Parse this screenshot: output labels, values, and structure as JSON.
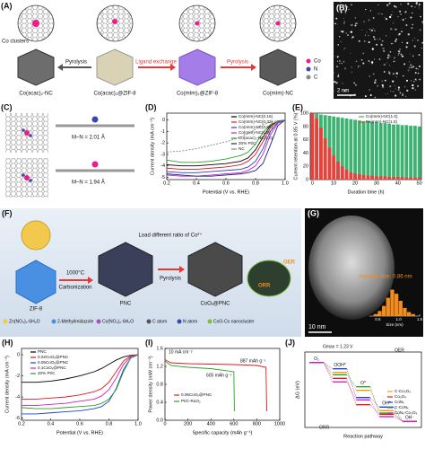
{
  "panel_labels": [
    "(A)",
    "(B)",
    "(C)",
    "(D)",
    "(E)",
    "(F)",
    "(G)",
    "(H)",
    "(I)",
    "(J)"
  ],
  "panel_a": {
    "note": "Co clusters",
    "steps": [
      "Pyrolysis",
      "Ligand exchange",
      "Pyrolysis"
    ],
    "materials": [
      "Co(acac)₂-NC",
      "Co(acac)₂@ZIF-8",
      "Co(mIm)₂@ZIF-8",
      "Co(mIm)-NC"
    ],
    "legend": [
      "Co",
      "N",
      "C"
    ]
  },
  "panel_b": {
    "scale_bar": "2 nm"
  },
  "panel_c": {
    "bonds": [
      "M–N = 2.01 Å",
      "M–N = 1.94 Å"
    ]
  },
  "panel_f": {
    "steps": [
      "1000°C",
      "Carbonization",
      "Load different ratio of Co²⁺",
      "Pyrolysis"
    ],
    "materials": [
      "ZIF-8",
      "PNC",
      "CoOₓ@PNC"
    ],
    "reactions": [
      "OER",
      "ORR"
    ],
    "legend": [
      "Zn(NO₃)₂·6H₂O",
      "2-Methylimidazole",
      "Co(NO₃)₂·6H₂O",
      "C atom",
      "N atom",
      "CoO-Co nanocluster"
    ]
  },
  "panel_g": {
    "average": "Average size: 0.86 nm",
    "scale_bar": "10 nm"
  },
  "chart_data": [
    {
      "type": "line",
      "x_label": "Potential (V vs. RHE)",
      "y_label": "Current density (mA cm⁻²)",
      "xlim": [
        0.2,
        1.0
      ],
      "xticks": [
        0.2,
        0.4,
        0.6,
        0.8,
        {
          "value": 1,
          "label": "1.0"
        }
      ],
      "ylim": [
        -5.2,
        0.6
      ],
      "yticks": [
        0,
        -1,
        -2,
        -3,
        -4,
        -5
      ],
      "x": [
        0.2,
        0.3,
        0.4,
        0.5,
        0.6,
        0.7,
        0.75,
        0.8,
        0.85,
        0.9,
        0.95,
        1.0
      ],
      "series": [
        {
          "name": "Co(mIm)-NC(0.16)",
          "color": "#000000",
          "values": [
            -3.9,
            -4.0,
            -4.0,
            -3.9,
            -3.8,
            -3.6,
            -3.3,
            -2.6,
            -1.5,
            -0.5,
            -0.1,
            0
          ]
        },
        {
          "name": "Co(mIm)-NC(0.33)",
          "color": "#e41a1c",
          "values": [
            -4.2,
            -4.3,
            -4.3,
            -4.2,
            -4.1,
            -3.9,
            -3.6,
            -3.0,
            -1.9,
            -0.7,
            -0.1,
            0
          ]
        },
        {
          "name": "Co(mIm)-NC(0.67)",
          "color": "#1f3fd0",
          "values": [
            -4.5,
            -4.6,
            -4.6,
            -4.5,
            -4.4,
            -4.3,
            -4.1,
            -3.6,
            -2.5,
            -1.0,
            -0.2,
            0
          ]
        },
        {
          "name": "Co(mIm)-NC(1.0)",
          "color": "#d01fc8",
          "values": [
            -4.8,
            -4.9,
            -4.9,
            -4.8,
            -4.7,
            -4.6,
            -4.4,
            -4.0,
            -3.0,
            -1.3,
            -0.3,
            0
          ]
        },
        {
          "name": "Co(acac)₂-NC(1.0)",
          "color": "#2ca02c",
          "values": [
            -3.5,
            -3.7,
            -3.7,
            -3.6,
            -3.4,
            -3.1,
            -2.8,
            -2.1,
            -1.1,
            -0.4,
            -0.1,
            0
          ]
        },
        {
          "name": "20% Pt/C",
          "color": "#1a237e",
          "values": [
            -4.7,
            -4.8,
            -4.9,
            -4.9,
            -4.8,
            -4.7,
            -4.6,
            -4.4,
            -3.8,
            -2.2,
            -0.5,
            0
          ]
        },
        {
          "name": "NC",
          "color": "#888888",
          "dash": true,
          "values": [
            -2.8,
            -2.7,
            -2.5,
            -2.2,
            -1.9,
            -1.5,
            -1.2,
            -0.8,
            -0.4,
            -0.2,
            -0.05,
            0
          ]
        }
      ]
    },
    {
      "type": "bar",
      "x_label": "Duration time (h)",
      "y_label": "Current retention at 0.85 V (%)",
      "xlim": [
        -1,
        51
      ],
      "xticks": [
        0,
        10,
        20,
        30,
        40,
        50
      ],
      "ylim": [
        0,
        100
      ],
      "yticks": [
        0,
        20,
        40,
        60,
        80,
        100
      ],
      "x": [
        0,
        2,
        4,
        6,
        8,
        10,
        12,
        14,
        16,
        18,
        20,
        22,
        24,
        26,
        28,
        30,
        32,
        34,
        36,
        38,
        40,
        42,
        44,
        46,
        48,
        50
      ],
      "series": [
        {
          "name": "Co(mIm)-NC(1.0)",
          "color": "#3cb371",
          "values": [
            100,
            99,
            98,
            97,
            96,
            95,
            94,
            93,
            92,
            91,
            90,
            89,
            88,
            88,
            87,
            86,
            85,
            85,
            84,
            83,
            83,
            82,
            82,
            81,
            81,
            80
          ]
        },
        {
          "name": "Fe(mIm)-NC(1.0)",
          "color": "#e8413c",
          "values": [
            100,
            92,
            78,
            62,
            48,
            36,
            27,
            20,
            15,
            11,
            9,
            8,
            7,
            6,
            6,
            5,
            5,
            5,
            4,
            4,
            4,
            4,
            3,
            3,
            3,
            3
          ]
        }
      ]
    },
    {
      "type": "histogram",
      "x_label": "Size (nm)",
      "xlim": [
        0.3,
        1.5
      ],
      "xticks": [
        0.5,
        {
          "value": 1,
          "label": "1.0"
        },
        1.5
      ],
      "ylim": [
        0,
        30
      ],
      "color": "#f28c1e",
      "bins": [
        0.4,
        0.5,
        0.6,
        0.7,
        0.8,
        0.9,
        1.0,
        1.1,
        1.2,
        1.3,
        1.4
      ],
      "values": [
        2,
        5,
        10,
        18,
        26,
        22,
        15,
        8,
        4,
        2
      ]
    },
    {
      "type": "line",
      "x_label": "Potential (V vs. RHE)",
      "y_label": "Current density (mA cm⁻²)",
      "xlim": [
        0.2,
        1.0
      ],
      "xticks": [
        0.2,
        0.4,
        0.6,
        0.8,
        {
          "value": 1,
          "label": "1.0"
        }
      ],
      "ylim": [
        -6.2,
        0.6
      ],
      "yticks": [
        0,
        -2,
        -4,
        -6
      ],
      "x": [
        0.2,
        0.3,
        0.4,
        0.5,
        0.6,
        0.7,
        0.75,
        0.8,
        0.85,
        0.9,
        0.95,
        1.0
      ],
      "series": [
        {
          "name": "PNC",
          "color": "#000000",
          "values": [
            -2.6,
            -2.6,
            -2.5,
            -2.3,
            -2.0,
            -1.6,
            -1.3,
            -0.9,
            -0.5,
            -0.2,
            -0.05,
            0
          ]
        },
        {
          "name": "0.02CoOₓ@PNC",
          "color": "#e41a1c",
          "values": [
            -4.2,
            -4.2,
            -4.1,
            -4.0,
            -3.8,
            -3.5,
            -3.2,
            -2.6,
            -1.6,
            -0.6,
            -0.1,
            0
          ]
        },
        {
          "name": "0.05CoOₓ@PNC",
          "color": "#1f3fd0",
          "values": [
            -5.6,
            -5.6,
            -5.5,
            -5.4,
            -5.3,
            -5.1,
            -4.9,
            -4.4,
            -3.2,
            -1.4,
            -0.3,
            0
          ]
        },
        {
          "name": "0.1CoOₓ@PNC",
          "color": "#d01fc8",
          "values": [
            -4.8,
            -4.8,
            -4.7,
            -4.6,
            -4.4,
            -4.2,
            -3.9,
            -3.3,
            -2.2,
            -0.9,
            -0.2,
            0
          ]
        },
        {
          "name": "20% Pt/C",
          "color": "#2ca02c",
          "values": [
            -5.0,
            -5.1,
            -5.1,
            -5.0,
            -4.9,
            -4.8,
            -4.6,
            -4.2,
            -3.3,
            -1.6,
            -0.3,
            0
          ]
        }
      ]
    },
    {
      "type": "line",
      "x_label": "Specific capacity (mAh g⁻¹)",
      "y_label": "Power density (mW cm⁻²)",
      "xlim": [
        0,
        1000
      ],
      "xticks": [
        0,
        200,
        400,
        600,
        800,
        1000
      ],
      "ylim": [
        0,
        1.6
      ],
      "yticks": [
        {
          "value": 0,
          "label": "0.0"
        },
        0.4,
        0.8,
        1.2,
        1.6
      ],
      "x": [
        0,
        50,
        200,
        400,
        600,
        605,
        800,
        880,
        887
      ],
      "series": [
        {
          "name": "0.05CoOₓ@PNC",
          "color": "#e41a1c",
          "values": [
            1.35,
            1.28,
            1.26,
            1.25,
            1.24,
            1.24,
            1.22,
            1.18,
            0.2
          ]
        },
        {
          "name": "Pt/C-RuO₂",
          "color": "#2ca02c",
          "values": [
            1.32,
            1.22,
            1.18,
            1.15,
            1.08,
            0.2,
            null,
            null,
            null
          ]
        }
      ],
      "annotations": [
        "10 mA cm⁻²",
        "887 mAh g⁻¹",
        "605 mAh g⁻¹"
      ]
    },
    {
      "type": "step",
      "x_label": "Reaction pathway",
      "y_label": "ΔG (eV)",
      "ylim": [
        -0.5,
        5.8
      ],
      "categories": [
        "O₂",
        "OOH*",
        "O*",
        "OH*",
        "OH⁻"
      ],
      "series": [
        {
          "name": "C-Co₃O₄",
          "color": "#f39c12",
          "values": [
            4.92,
            4.1,
            2.6,
            0.9,
            0
          ]
        },
        {
          "name": "Co₃O₄",
          "color": "#e41a1c",
          "values": [
            4.92,
            3.6,
            1.4,
            0.6,
            0
          ]
        },
        {
          "name": "CoNₓ",
          "color": "#1f3fd0",
          "values": [
            4.92,
            4.4,
            2.0,
            1.2,
            0
          ]
        },
        {
          "name": "C-CoNₓ",
          "color": "#2ca02c",
          "values": [
            4.92,
            3.9,
            2.9,
            0.7,
            0
          ]
        },
        {
          "name": "CoNₓ-Co₃O₄",
          "color": "#d01fc8",
          "values": [
            4.92,
            3.3,
            1.8,
            0.4,
            0
          ]
        }
      ],
      "annotations": [
        "Gmax = 1.23 V",
        "ORR",
        "OER"
      ]
    }
  ]
}
